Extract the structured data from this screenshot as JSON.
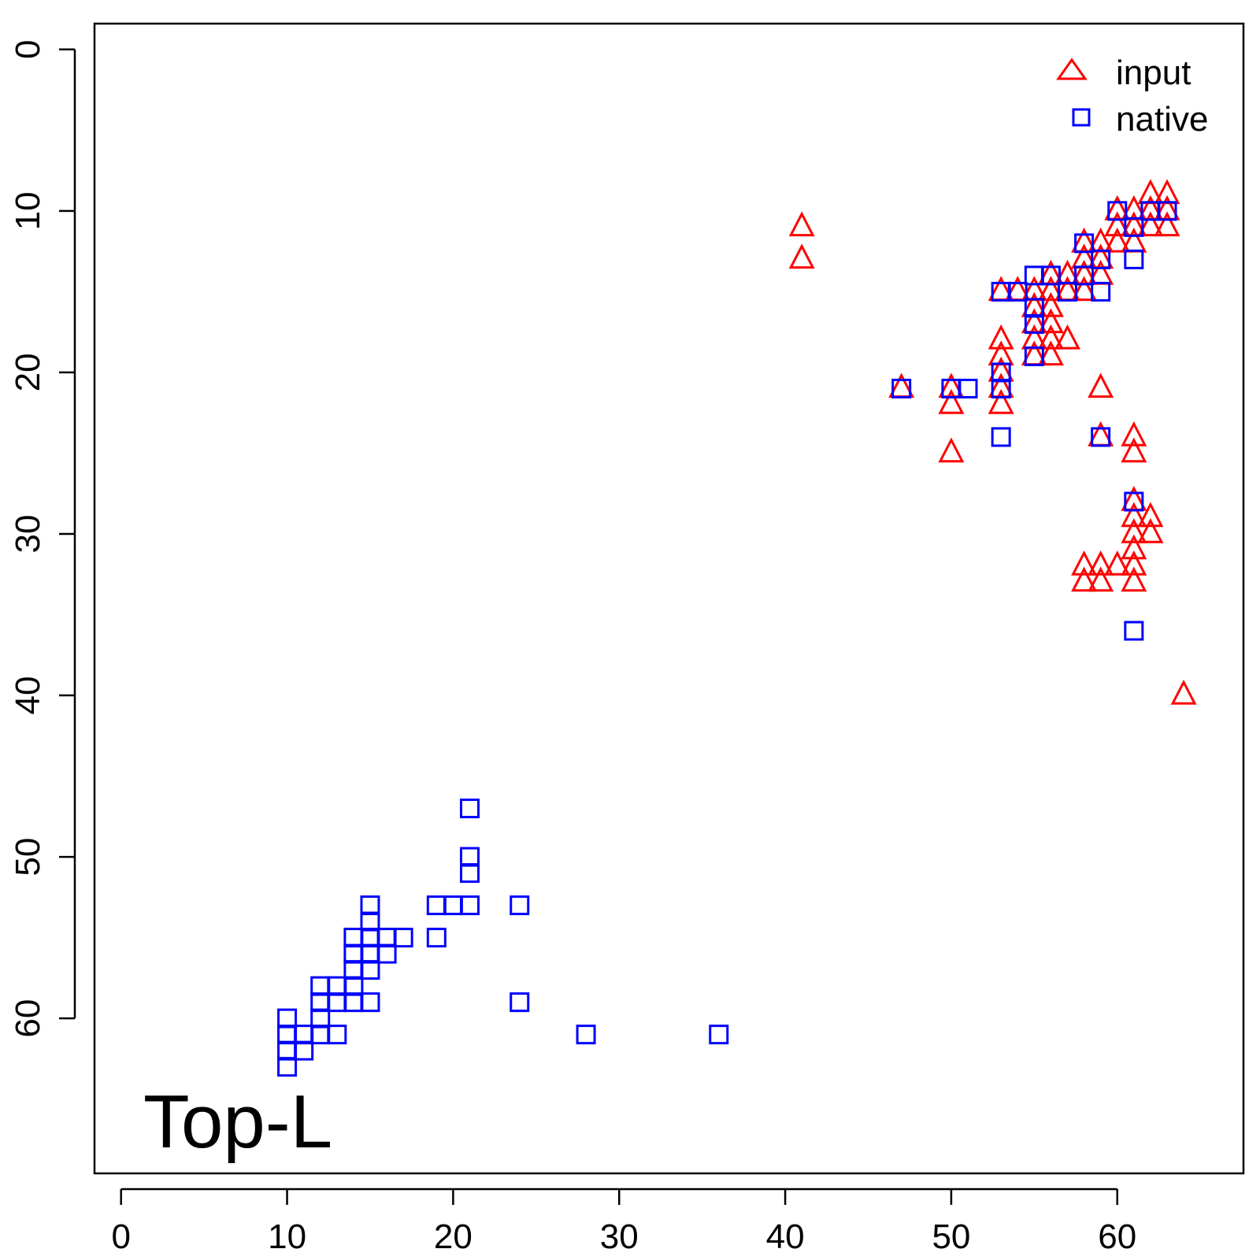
{
  "chart_data": {
    "type": "scatter",
    "title": "",
    "xlabel": "",
    "ylabel": "",
    "xlim": [
      -1.6,
      67.6
    ],
    "ylim": [
      -1.6,
      69.6
    ],
    "y_axis_reversed": true,
    "x_ticks": [
      "0",
      "10",
      "20",
      "30",
      "40",
      "50",
      "60"
    ],
    "y_ticks": [
      "0",
      "10",
      "20",
      "30",
      "40",
      "50",
      "60"
    ],
    "grid": false,
    "legend_position": "top-right",
    "annotation": "Top-L",
    "series": [
      {
        "name": "input",
        "marker": "triangle",
        "color": "#ff0000",
        "points": [
          [
            41,
            11
          ],
          [
            41,
            13
          ],
          [
            47,
            21
          ],
          [
            50,
            21
          ],
          [
            50,
            22
          ],
          [
            50,
            25
          ],
          [
            53,
            15
          ],
          [
            53,
            18
          ],
          [
            53,
            19
          ],
          [
            53,
            20
          ],
          [
            53,
            21
          ],
          [
            53,
            22
          ],
          [
            54,
            15
          ],
          [
            55,
            15
          ],
          [
            55,
            16
          ],
          [
            55,
            17
          ],
          [
            55,
            18
          ],
          [
            55,
            19
          ],
          [
            56,
            14
          ],
          [
            56,
            15
          ],
          [
            56,
            16
          ],
          [
            56,
            17
          ],
          [
            56,
            18
          ],
          [
            56,
            19
          ],
          [
            57,
            14
          ],
          [
            57,
            15
          ],
          [
            57,
            18
          ],
          [
            58,
            12
          ],
          [
            58,
            13
          ],
          [
            58,
            14
          ],
          [
            58,
            15
          ],
          [
            59,
            12
          ],
          [
            59,
            13
          ],
          [
            59,
            14
          ],
          [
            59,
            21
          ],
          [
            59,
            24
          ],
          [
            60,
            10
          ],
          [
            60,
            11
          ],
          [
            60,
            12
          ],
          [
            61,
            10
          ],
          [
            61,
            11
          ],
          [
            61,
            12
          ],
          [
            62,
            9
          ],
          [
            62,
            10
          ],
          [
            62,
            11
          ],
          [
            63,
            9
          ],
          [
            63,
            10
          ],
          [
            63,
            11
          ],
          [
            61,
            24
          ],
          [
            61,
            25
          ],
          [
            61,
            28
          ],
          [
            61,
            29
          ],
          [
            61,
            30
          ],
          [
            61,
            31
          ],
          [
            61,
            32
          ],
          [
            61,
            33
          ],
          [
            62,
            29
          ],
          [
            62,
            30
          ],
          [
            58,
            32
          ],
          [
            58,
            33
          ],
          [
            59,
            32
          ],
          [
            59,
            33
          ],
          [
            60,
            32
          ],
          [
            64,
            40
          ]
        ]
      },
      {
        "name": "native",
        "marker": "square",
        "color": "#0000ff",
        "points": [
          [
            47,
            21
          ],
          [
            50,
            21
          ],
          [
            51,
            21
          ],
          [
            53,
            15
          ],
          [
            53,
            20
          ],
          [
            53,
            21
          ],
          [
            53,
            24
          ],
          [
            54,
            15
          ],
          [
            55,
            14
          ],
          [
            55,
            16
          ],
          [
            55,
            17
          ],
          [
            55,
            19
          ],
          [
            56,
            14
          ],
          [
            57,
            15
          ],
          [
            58,
            12
          ],
          [
            58,
            14
          ],
          [
            59,
            13
          ],
          [
            59,
            15
          ],
          [
            59,
            24
          ],
          [
            60,
            10
          ],
          [
            61,
            11
          ],
          [
            61,
            13
          ],
          [
            62,
            10
          ],
          [
            63,
            10
          ],
          [
            61,
            28
          ],
          [
            61,
            36
          ],
          [
            21,
            47
          ],
          [
            21,
            50
          ],
          [
            21,
            51
          ],
          [
            19,
            53
          ],
          [
            20,
            53
          ],
          [
            21,
            53
          ],
          [
            24,
            53
          ],
          [
            15,
            53
          ],
          [
            15,
            54
          ],
          [
            14,
            55
          ],
          [
            15,
            55
          ],
          [
            16,
            55
          ],
          [
            17,
            55
          ],
          [
            19,
            55
          ],
          [
            14,
            56
          ],
          [
            15,
            56
          ],
          [
            16,
            56
          ],
          [
            14,
            57
          ],
          [
            15,
            57
          ],
          [
            12,
            58
          ],
          [
            13,
            58
          ],
          [
            14,
            58
          ],
          [
            12,
            59
          ],
          [
            13,
            59
          ],
          [
            14,
            59
          ],
          [
            15,
            59
          ],
          [
            24,
            59
          ],
          [
            10,
            60
          ],
          [
            12,
            60
          ],
          [
            10,
            61
          ],
          [
            11,
            61
          ],
          [
            12,
            61
          ],
          [
            13,
            61
          ],
          [
            28,
            61
          ],
          [
            36,
            61
          ],
          [
            10,
            62
          ],
          [
            11,
            62
          ],
          [
            10,
            63
          ]
        ]
      }
    ]
  }
}
